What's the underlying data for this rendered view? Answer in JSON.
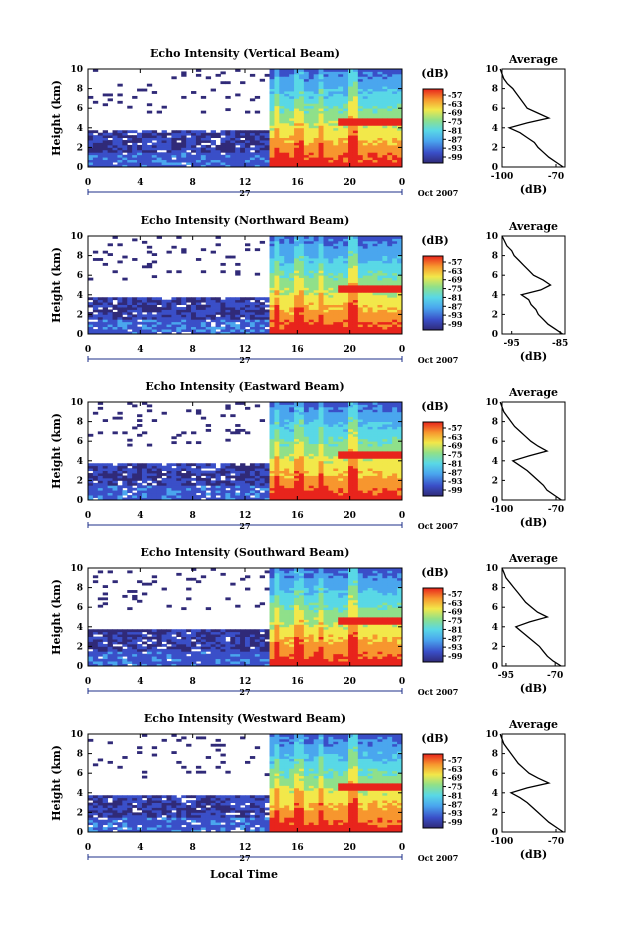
{
  "chart_data": {
    "type": "heatmap",
    "x_axis": {
      "label": "Local Time",
      "ticks": [
        "0",
        "4",
        "8",
        "12",
        "16",
        "20",
        "0"
      ],
      "date_day": "27",
      "date_month": "Oct 2007",
      "range_hours": [
        0,
        24
      ]
    },
    "y_axis": {
      "label": "Height (km)",
      "ticks": [
        "0",
        "2",
        "4",
        "6",
        "8",
        "10"
      ],
      "range": [
        0,
        10
      ]
    },
    "colorbar": {
      "label": "(dB)",
      "ticks": [
        "-57",
        "-63",
        "-69",
        "-75",
        "-81",
        "-87",
        "-93",
        "-99"
      ]
    },
    "panels": [
      {
        "title": "Echo Intensity (Vertical Beam)",
        "average": {
          "title": "Average",
          "xlabel": "(dB)",
          "xticks": [
            "-100",
            "-70"
          ],
          "xlim": [
            -100,
            -65
          ],
          "heights": [
            0,
            0.5,
            1,
            1.5,
            2,
            2.5,
            3,
            3.5,
            4,
            4.5,
            5,
            5.5,
            6,
            6.5,
            7,
            7.5,
            8,
            8.5,
            9,
            9.5,
            10
          ],
          "values": [
            -66,
            -70,
            -74,
            -77,
            -80,
            -82,
            -86,
            -90,
            -96,
            -86,
            -74,
            -80,
            -86,
            -88,
            -90,
            -92,
            -94,
            -97,
            -99,
            -100,
            -101
          ]
        }
      },
      {
        "title": "Echo Intensity (Northward Beam)",
        "average": {
          "title": "Average",
          "xlabel": "(dB)",
          "xticks": [
            "-95",
            "-85"
          ],
          "xlim": [
            -97,
            -84
          ],
          "heights": [
            0,
            0.5,
            1,
            1.5,
            2,
            2.5,
            3,
            3.5,
            4,
            4.5,
            5,
            5.5,
            6,
            6.5,
            7,
            7.5,
            8,
            8.5,
            9,
            9.5,
            10
          ],
          "values": [
            -84.5,
            -86,
            -87.5,
            -88.5,
            -89.5,
            -90,
            -91,
            -91.5,
            -93,
            -89,
            -87,
            -88.5,
            -90.5,
            -91.5,
            -92.5,
            -93.5,
            -94.5,
            -95,
            -96,
            -96.5,
            -97
          ]
        }
      },
      {
        "title": "Echo Intensity (Eastward Beam)",
        "average": {
          "title": "Average",
          "xlabel": "(dB)",
          "xticks": [
            "-100",
            "-70"
          ],
          "xlim": [
            -100,
            -65
          ],
          "heights": [
            0,
            0.5,
            1,
            1.5,
            2,
            2.5,
            3,
            3.5,
            4,
            4.5,
            5,
            5.5,
            6,
            6.5,
            7,
            7.5,
            8,
            8.5,
            9,
            9.5,
            10
          ],
          "values": [
            -67,
            -71,
            -75,
            -77,
            -80,
            -83,
            -86,
            -90,
            -94,
            -85,
            -75,
            -80,
            -84,
            -87,
            -90,
            -93,
            -95,
            -97,
            -99,
            -100,
            -101
          ]
        }
      },
      {
        "title": "Echo Intensity (Southward Beam)",
        "average": {
          "title": "Average",
          "xlabel": "(dB)",
          "xticks": [
            "-95",
            "-70"
          ],
          "xlim": [
            -97,
            -65
          ],
          "heights": [
            0,
            0.5,
            1,
            1.5,
            2,
            2.5,
            3,
            3.5,
            4,
            4.5,
            5,
            5.5,
            6,
            6.5,
            7,
            7.5,
            8,
            8.5,
            9,
            9.5,
            10
          ],
          "values": [
            -67,
            -71,
            -74,
            -76,
            -78,
            -81,
            -84,
            -87,
            -90,
            -83,
            -74,
            -79,
            -82,
            -85,
            -87,
            -89,
            -91,
            -93,
            -95,
            -96,
            -97
          ]
        }
      },
      {
        "title": "Echo Intensity (Westward Beam)",
        "average": {
          "title": "Average",
          "xlabel": "(dB)",
          "xticks": [
            "-100",
            "-70"
          ],
          "xlim": [
            -100,
            -65
          ],
          "heights": [
            0,
            0.5,
            1,
            1.5,
            2,
            2.5,
            3,
            3.5,
            4,
            4.5,
            5,
            5.5,
            6,
            6.5,
            7,
            7.5,
            8,
            8.5,
            9,
            9.5,
            10
          ],
          "values": [
            -66,
            -70,
            -74,
            -77,
            -80,
            -83,
            -86,
            -90,
            -95,
            -86,
            -74,
            -80,
            -85,
            -88,
            -91,
            -93,
            -95,
            -97,
            -99,
            -100,
            -101
          ]
        }
      }
    ]
  }
}
